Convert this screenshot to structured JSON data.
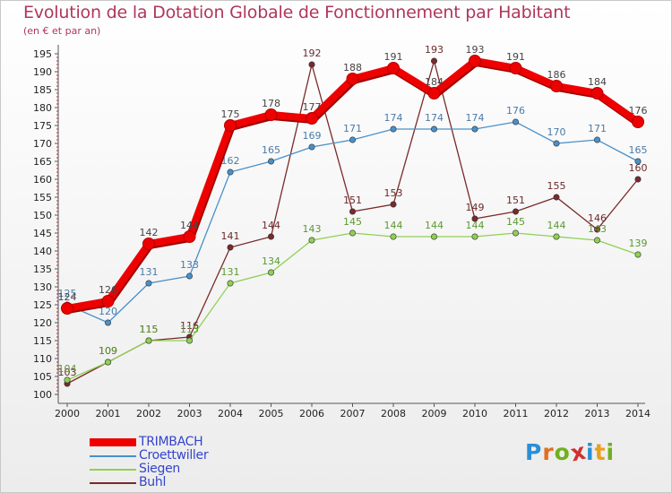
{
  "header": {
    "title": "Evolution de la Dotation Globale de Fonctionnement par Habitant",
    "subtitle": "(en € et par an)"
  },
  "logo": {
    "text": "Proxiti",
    "letter_colors": [
      "#2a8fd6",
      "#e07020",
      "#70b020",
      "#d03030",
      "#2a8fd6",
      "#e8a020",
      "#70b020"
    ]
  },
  "chart_data": {
    "type": "line",
    "x": [
      "2000",
      "2001",
      "2002",
      "2003",
      "2004",
      "2005",
      "2006",
      "2007",
      "2008",
      "2009",
      "2010",
      "2011",
      "2012",
      "2013",
      "2014"
    ],
    "ylim": [
      100,
      195
    ],
    "yticks": [
      100,
      105,
      110,
      115,
      120,
      125,
      130,
      135,
      140,
      145,
      150,
      155,
      160,
      165,
      170,
      175,
      180,
      185,
      190,
      195
    ],
    "grid": false,
    "legend_position": "bottom-left",
    "series": [
      {
        "name": "TRIMBACH",
        "color": "#ee0000",
        "labelColor": "#444444",
        "emphasis": true,
        "values": [
          124,
          126,
          142,
          144,
          175,
          178,
          177,
          188,
          191,
          184,
          193,
          191,
          186,
          184,
          176
        ]
      },
      {
        "name": "Croettwiller",
        "color": "#4a90c8",
        "labelColor": "#4a7aa8",
        "emphasis": false,
        "values": [
          125,
          120,
          131,
          133,
          162,
          165,
          169,
          171,
          174,
          174,
          174,
          176,
          170,
          171,
          165
        ]
      },
      {
        "name": "Siegen",
        "color": "#8fd053",
        "labelColor": "#5a9a30",
        "emphasis": false,
        "values": [
          104,
          109,
          115,
          115,
          131,
          134,
          143,
          145,
          144,
          144,
          144,
          145,
          144,
          143,
          139
        ]
      },
      {
        "name": "Buhl",
        "color": "#7a2a2a",
        "labelColor": "#6a2a2a",
        "emphasis": false,
        "values": [
          103,
          109,
          115,
          116,
          141,
          144,
          192,
          151,
          153,
          193,
          149,
          151,
          155,
          146,
          160
        ]
      }
    ]
  }
}
